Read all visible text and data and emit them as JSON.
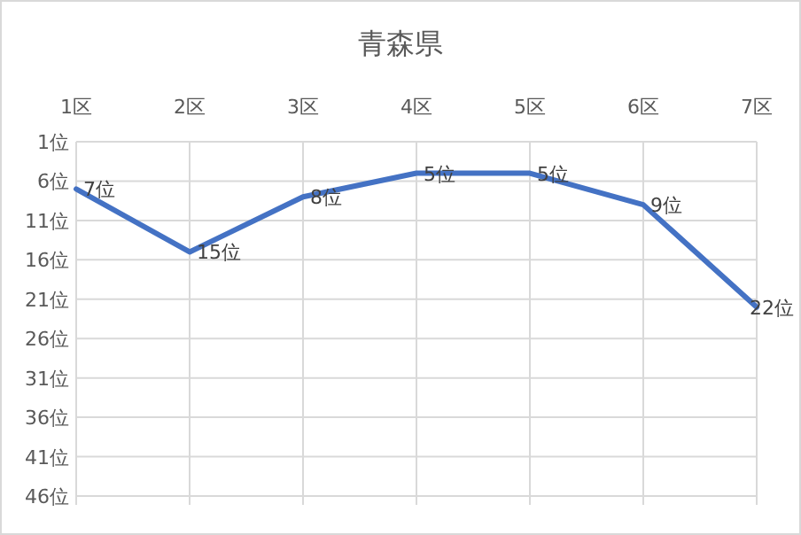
{
  "chart_data": {
    "type": "line",
    "title": "青森県",
    "categories": [
      "1区",
      "2区",
      "3区",
      "4区",
      "5区",
      "6区",
      "7区"
    ],
    "series": [
      {
        "color": "#4472c4",
        "values": [
          7,
          15,
          8,
          5,
          5,
          9,
          22
        ],
        "value_labels": [
          "7位",
          "15位",
          "8位",
          "5位",
          "5位",
          "9位",
          "22位"
        ]
      }
    ],
    "ylim": [
      46,
      1
    ],
    "yticks": [
      {
        "value": 1,
        "label": "1位"
      },
      {
        "value": 6,
        "label": "6位"
      },
      {
        "value": 11,
        "label": "11位"
      },
      {
        "value": 16,
        "label": "16位"
      },
      {
        "value": 21,
        "label": "21位"
      },
      {
        "value": 26,
        "label": "26位"
      },
      {
        "value": 31,
        "label": "31位"
      },
      {
        "value": 36,
        "label": "36位"
      },
      {
        "value": 41,
        "label": "41位"
      },
      {
        "value": 46,
        "label": "46位"
      }
    ],
    "grid": true,
    "marker": "none",
    "line_style": "solid"
  }
}
